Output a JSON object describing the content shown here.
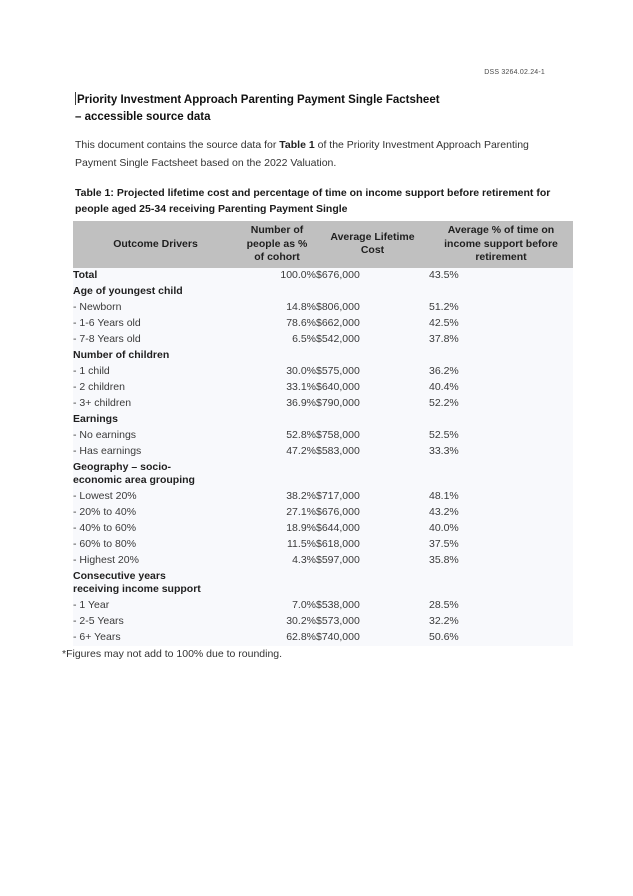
{
  "page": {
    "doc_ref": "DSS 3264.02.24-1",
    "title_line1": "Priority Investment Approach Parenting Payment Single Factsheet",
    "title_line2": "– accessible source data",
    "intro_pre": "This document contains the source data for ",
    "intro_bold": "Table 1",
    "intro_post": " of the Priority Investment Approach Parenting Payment Single Factsheet based on the 2022 Valuation.",
    "footnote": "*Figures may not add to 100% due to rounding."
  },
  "colors": {
    "header_bg": "#c0c0c0",
    "table_body_bg": "#f8f9fc",
    "page_bg": "#ffffff"
  },
  "table": {
    "caption": "Table 1: Projected lifetime cost and percentage of time on income support before retirement for people aged 25-34 receiving Parenting Payment Single",
    "columns": [
      "Outcome Drivers",
      "Number of people as % of cohort",
      "Average Lifetime Cost",
      "Average % of time on income support before retirement"
    ],
    "rows": [
      {
        "label": "Total",
        "style": "boldrow",
        "values": [
          "100.0%",
          "$676,000",
          "43.5%"
        ]
      },
      {
        "label": "Age of youngest child",
        "style": "group",
        "values": [
          "",
          "",
          ""
        ]
      },
      {
        "label": "- Newborn",
        "style": "item",
        "values": [
          "14.8%",
          "$806,000",
          "51.2%"
        ]
      },
      {
        "label": "- 1-6 Years old",
        "style": "item",
        "values": [
          "78.6%",
          "$662,000",
          "42.5%"
        ]
      },
      {
        "label": "- 7-8 Years old",
        "style": "item",
        "values": [
          "6.5%",
          "$542,000",
          "37.8%"
        ]
      },
      {
        "label": "Number of children",
        "style": "group",
        "values": [
          "",
          "",
          ""
        ]
      },
      {
        "label": "- 1 child",
        "style": "item",
        "values": [
          "30.0%",
          "$575,000",
          "36.2%"
        ]
      },
      {
        "label": "- 2 children",
        "style": "item",
        "values": [
          "33.1%",
          "$640,000",
          "40.4%"
        ]
      },
      {
        "label": "- 3+ children",
        "style": "item",
        "values": [
          "36.9%",
          "$790,000",
          "52.2%"
        ]
      },
      {
        "label": "Earnings",
        "style": "group",
        "values": [
          "",
          "",
          ""
        ]
      },
      {
        "label": "- No earnings",
        "style": "item",
        "values": [
          "52.8%",
          "$758,000",
          "52.5%"
        ]
      },
      {
        "label": "- Has earnings",
        "style": "item",
        "values": [
          "47.2%",
          "$583,000",
          "33.3%"
        ]
      },
      {
        "label": "Geography – socio-\neconomic area grouping",
        "style": "group",
        "values": [
          "",
          "",
          ""
        ]
      },
      {
        "label": "- Lowest 20%",
        "style": "item",
        "values": [
          "38.2%",
          "$717,000",
          "48.1%"
        ]
      },
      {
        "label": "- 20% to 40%",
        "style": "item",
        "values": [
          "27.1%",
          "$676,000",
          "43.2%"
        ]
      },
      {
        "label": "- 40% to 60%",
        "style": "item",
        "values": [
          "18.9%",
          "$644,000",
          "40.0%"
        ]
      },
      {
        "label": "- 60% to 80%",
        "style": "item",
        "values": [
          "11.5%",
          "$618,000",
          "37.5%"
        ]
      },
      {
        "label": "- Highest 20%",
        "style": "item",
        "values": [
          "4.3%",
          "$597,000",
          "35.8%"
        ]
      },
      {
        "label": "Consecutive years\nreceiving income support",
        "style": "group",
        "values": [
          "",
          "",
          ""
        ]
      },
      {
        "label": "- 1 Year",
        "style": "item",
        "values": [
          "7.0%",
          "$538,000",
          "28.5%"
        ]
      },
      {
        "label": "- 2-5 Years",
        "style": "item",
        "values": [
          "30.2%",
          "$573,000",
          "32.2%"
        ]
      },
      {
        "label": "- 6+ Years",
        "style": "item",
        "values": [
          "62.8%",
          "$740,000",
          "50.6%"
        ]
      }
    ]
  }
}
